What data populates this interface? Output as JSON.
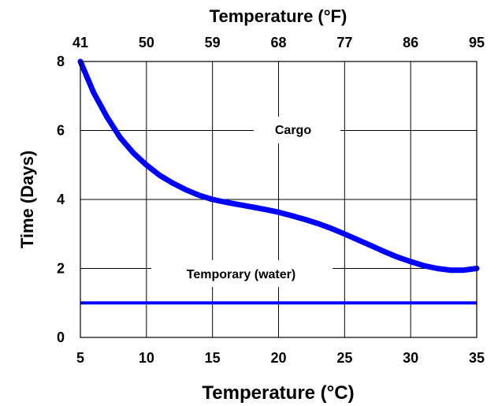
{
  "chart_data": {
    "type": "line",
    "xlabel": "Temperature (°C)",
    "x2label": "Temperature (°F)",
    "ylabel": "Time (Days)",
    "xlim": [
      5,
      35
    ],
    "ylim": [
      0,
      8
    ],
    "xticks": [
      5,
      10,
      15,
      20,
      25,
      30,
      35
    ],
    "x2ticks": [
      "41",
      "50",
      "59",
      "68",
      "77",
      "86",
      "95"
    ],
    "yticks": [
      0,
      2,
      4,
      6,
      8
    ],
    "grid": true,
    "series_color": "#0000ff",
    "series": [
      {
        "name": "Cargo",
        "x": [
          5,
          6,
          7,
          8,
          9,
          10,
          11,
          12,
          13,
          14,
          15,
          16,
          17,
          18,
          19,
          20,
          21,
          22,
          23,
          24,
          25,
          26,
          27,
          28,
          29,
          30,
          31,
          32,
          33,
          34,
          35
        ],
        "y": [
          8.0,
          7.1,
          6.4,
          5.8,
          5.35,
          5.0,
          4.7,
          4.47,
          4.28,
          4.12,
          4.0,
          3.92,
          3.85,
          3.78,
          3.71,
          3.63,
          3.53,
          3.42,
          3.3,
          3.16,
          3.0,
          2.83,
          2.66,
          2.49,
          2.33,
          2.2,
          2.08,
          2.0,
          1.95,
          1.95,
          2.0
        ]
      },
      {
        "name": "Temporary (water)",
        "x": [
          5,
          35
        ],
        "y": [
          1.0,
          1.0
        ]
      }
    ],
    "annotations": [
      "Cargo",
      "Temporary (water)"
    ]
  }
}
